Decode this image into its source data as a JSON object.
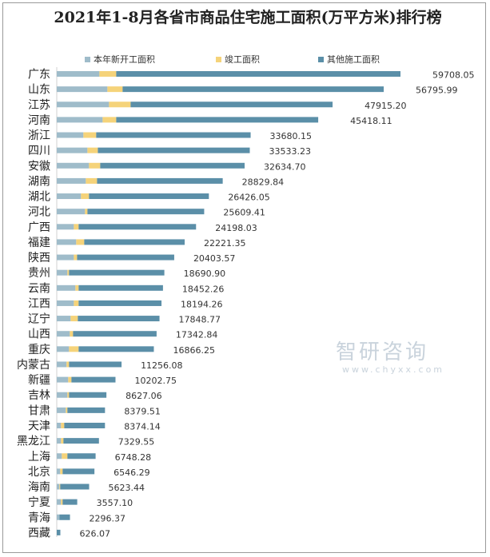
{
  "chart_data": {
    "type": "bar",
    "orientation": "horizontal",
    "stacked": true,
    "title": "2021年1-8月各省市商品住宅施工面积(万平方米)排行榜",
    "legend_position": "top",
    "grid": false,
    "categories": [
      "广东",
      "山东",
      "江苏",
      "河南",
      "浙江",
      "四川",
      "安徽",
      "湖南",
      "湖北",
      "河北",
      "广西",
      "福建",
      "陕西",
      "贵州",
      "云南",
      "江西",
      "辽宁",
      "山西",
      "重庆",
      "内蒙古",
      "新疆",
      "吉林",
      "甘肃",
      "天津",
      "黑龙江",
      "上海",
      "北京",
      "海南",
      "宁夏",
      "青海",
      "西藏"
    ],
    "totals": [
      "59708.05",
      "56795.99",
      "47915.20",
      "45418.11",
      "33680.15",
      "33533.23",
      "32634.70",
      "28829.84",
      "26426.05",
      "25609.41",
      "24198.03",
      "22221.35",
      "20403.57",
      "18690.90",
      "18452.26",
      "18194.26",
      "17848.77",
      "17342.84",
      "16866.25",
      "11256.08",
      "10202.75",
      "8627.06",
      "8379.51",
      "8374.14",
      "7329.55",
      "6748.28",
      "6546.29",
      "5623.44",
      "3557.10",
      "2296.37",
      "626.07"
    ],
    "series": [
      {
        "name": "本年新开工面积",
        "color": "#9fbcca",
        "values": [
          7410,
          8800,
          9080,
          7970,
          4630,
          5330,
          5600,
          5050,
          4210,
          4910,
          2970,
          3380,
          2970,
          1850,
          3240,
          2970,
          2410,
          2270,
          2130,
          1710,
          1990,
          1850,
          1570,
          740,
          740,
          880,
          600,
          460,
          740,
          460,
          0
        ]
      },
      {
        "name": "竣工面积",
        "color": "#f5d37a",
        "values": [
          2920,
          2640,
          3750,
          2360,
          2220,
          1810,
          1950,
          1950,
          1390,
          420,
          830,
          1390,
          560,
          280,
          560,
          830,
          1250,
          560,
          1670,
          420,
          560,
          280,
          280,
          560,
          420,
          970,
          420,
          140,
          280,
          0,
          0
        ]
      },
      {
        "name": "其他施工面积",
        "color": "#5b8fa8",
        "values": [
          49378,
          45356,
          35085,
          35088,
          26830,
          26393,
          25085,
          21830,
          20826,
          20279,
          20398,
          17451,
          16874,
          16561,
          14652,
          14394,
          14189,
          14513,
          13066,
          9126,
          7653,
          6497,
          6530,
          7074,
          6170,
          4898,
          5526,
          5023,
          2537,
          1836,
          626
        ]
      }
    ],
    "xlim": [
      0,
      59708.05
    ]
  },
  "watermark": {
    "brand": "智研咨询",
    "url": "www.chyxx.com"
  }
}
